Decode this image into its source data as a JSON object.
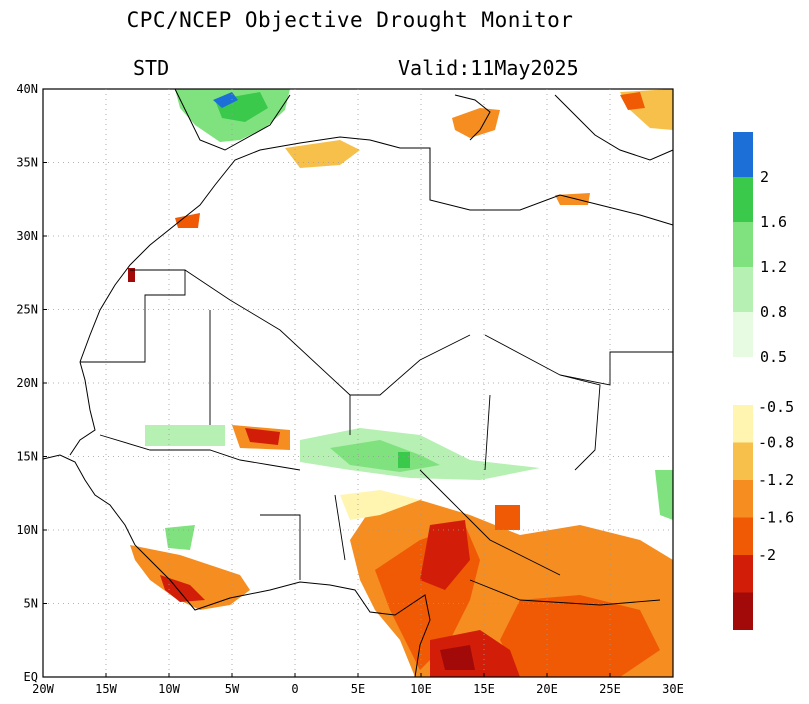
{
  "title": "CPC/NCEP Objective Drought Monitor",
  "field_label": "STD",
  "valid_label": "Valid:11May2025",
  "axes": {
    "y_ticks": [
      "EQ",
      "5N",
      "10N",
      "15N",
      "20N",
      "25N",
      "30N",
      "35N",
      "40N"
    ],
    "x_ticks": [
      "20W",
      "15W",
      "10W",
      "5W",
      "0",
      "5E",
      "10E",
      "15E",
      "20E",
      "25E",
      "30E"
    ]
  },
  "legend_positive": {
    "labels": [
      "2",
      "1.6",
      "1.2",
      "0.8",
      "0.5"
    ],
    "colors": [
      "#1c6fd6",
      "#3ac94a",
      "#7fe27f",
      "#b6f0b2",
      "#e6fbe2"
    ]
  },
  "legend_negative": {
    "labels": [
      "-0.5",
      "-0.8",
      "-1.2",
      "-1.6",
      "-2"
    ],
    "colors": [
      "#fff5b0",
      "#f7c04a",
      "#f58d20",
      "#f05a05",
      "#d21e08",
      "#a10a08"
    ]
  }
}
